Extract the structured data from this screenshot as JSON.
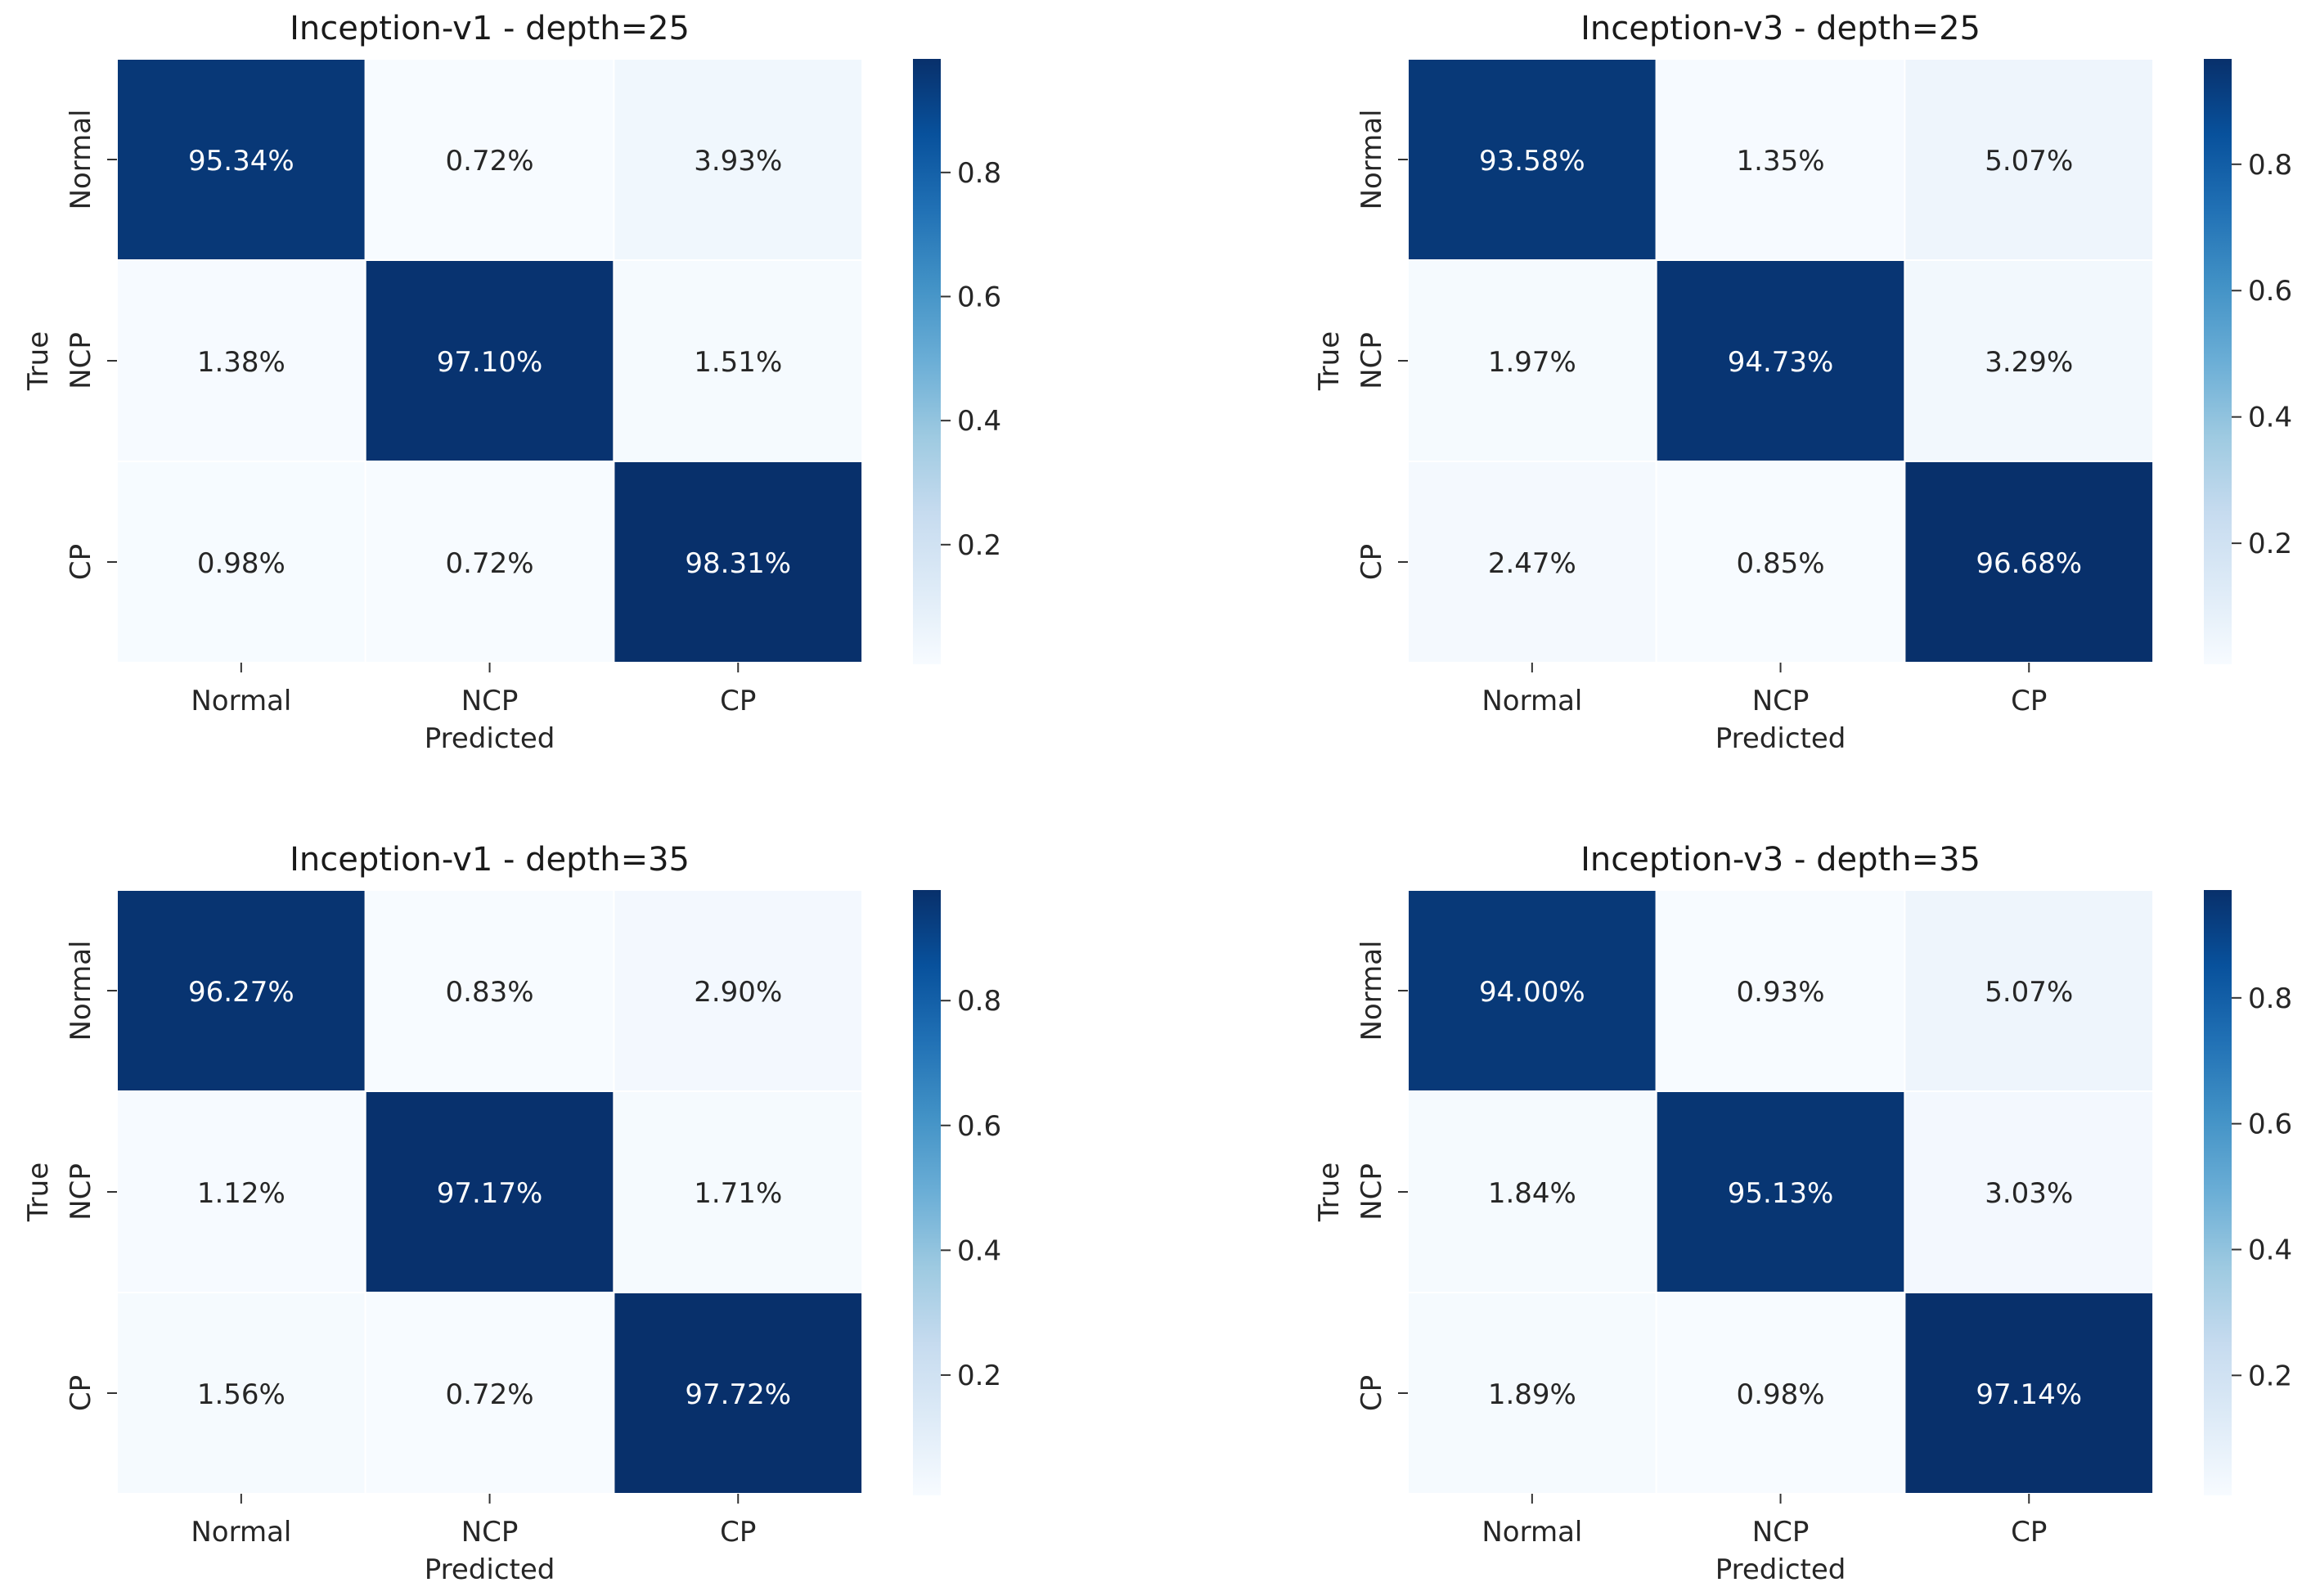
{
  "chart_data": [
    {
      "type": "heatmap",
      "title": "Inception-v1 - depth=25",
      "xlabel": "Predicted",
      "ylabel": "True",
      "x_categories": [
        "Normal",
        "NCP",
        "CP"
      ],
      "y_categories": [
        "Normal",
        "NCP",
        "CP"
      ],
      "cell_labels": [
        [
          "95.34%",
          "0.72%",
          "3.93%"
        ],
        [
          "1.38%",
          "97.10%",
          "1.51%"
        ],
        [
          "0.98%",
          "0.72%",
          "98.31%"
        ]
      ],
      "values": [
        [
          0.9534,
          0.0072,
          0.0393
        ],
        [
          0.0138,
          0.971,
          0.0151
        ],
        [
          0.0098,
          0.0072,
          0.9831
        ]
      ],
      "colorbar": {
        "range": [
          0.0072,
          0.9831
        ],
        "ticks": [
          0.2,
          0.4,
          0.6,
          0.8
        ],
        "tick_labels": [
          "0.2",
          "0.4",
          "0.6",
          "0.8"
        ]
      }
    },
    {
      "type": "heatmap",
      "title": "Inception-v3 - depth=25",
      "xlabel": "Predicted",
      "ylabel": "True",
      "x_categories": [
        "Normal",
        "NCP",
        "CP"
      ],
      "y_categories": [
        "Normal",
        "NCP",
        "CP"
      ],
      "cell_labels": [
        [
          "93.58%",
          "1.35%",
          "5.07%"
        ],
        [
          "1.97%",
          "94.73%",
          "3.29%"
        ],
        [
          "2.47%",
          "0.85%",
          "96.68%"
        ]
      ],
      "values": [
        [
          0.9358,
          0.0135,
          0.0507
        ],
        [
          0.0197,
          0.9473,
          0.0329
        ],
        [
          0.0247,
          0.0085,
          0.9668
        ]
      ],
      "colorbar": {
        "range": [
          0.0085,
          0.9668
        ],
        "ticks": [
          0.2,
          0.4,
          0.6,
          0.8
        ],
        "tick_labels": [
          "0.2",
          "0.4",
          "0.6",
          "0.8"
        ]
      }
    },
    {
      "type": "heatmap",
      "title": "Inception-v1 - depth=35",
      "xlabel": "Predicted",
      "ylabel": "True",
      "x_categories": [
        "Normal",
        "NCP",
        "CP"
      ],
      "y_categories": [
        "Normal",
        "NCP",
        "CP"
      ],
      "cell_labels": [
        [
          "96.27%",
          "0.83%",
          "2.90%"
        ],
        [
          "1.12%",
          "97.17%",
          "1.71%"
        ],
        [
          "1.56%",
          "0.72%",
          "97.72%"
        ]
      ],
      "values": [
        [
          0.9627,
          0.0083,
          0.029
        ],
        [
          0.0112,
          0.9717,
          0.0171
        ],
        [
          0.0156,
          0.0072,
          0.9772
        ]
      ],
      "colorbar": {
        "range": [
          0.0072,
          0.9772
        ],
        "ticks": [
          0.2,
          0.4,
          0.6,
          0.8
        ],
        "tick_labels": [
          "0.2",
          "0.4",
          "0.6",
          "0.8"
        ]
      }
    },
    {
      "type": "heatmap",
      "title": "Inception-v3 - depth=35",
      "xlabel": "Predicted",
      "ylabel": "True",
      "x_categories": [
        "Normal",
        "NCP",
        "CP"
      ],
      "y_categories": [
        "Normal",
        "NCP",
        "CP"
      ],
      "cell_labels": [
        [
          "94.00%",
          "0.93%",
          "5.07%"
        ],
        [
          "1.84%",
          "95.13%",
          "3.03%"
        ],
        [
          "1.89%",
          "0.98%",
          "97.14%"
        ]
      ],
      "values": [
        [
          0.94,
          0.0093,
          0.0507
        ],
        [
          0.0184,
          0.9513,
          0.0303
        ],
        [
          0.0189,
          0.0098,
          0.9714
        ]
      ],
      "colorbar": {
        "range": [
          0.0093,
          0.9714
        ],
        "ticks": [
          0.2,
          0.4,
          0.6,
          0.8
        ],
        "tick_labels": [
          "0.2",
          "0.4",
          "0.6",
          "0.8"
        ]
      }
    }
  ],
  "colormap": [
    "#f7fbff",
    "#deebf7",
    "#c6dbef",
    "#9ecae1",
    "#6baed6",
    "#4292c6",
    "#2171b5",
    "#08519c",
    "#08306b"
  ]
}
